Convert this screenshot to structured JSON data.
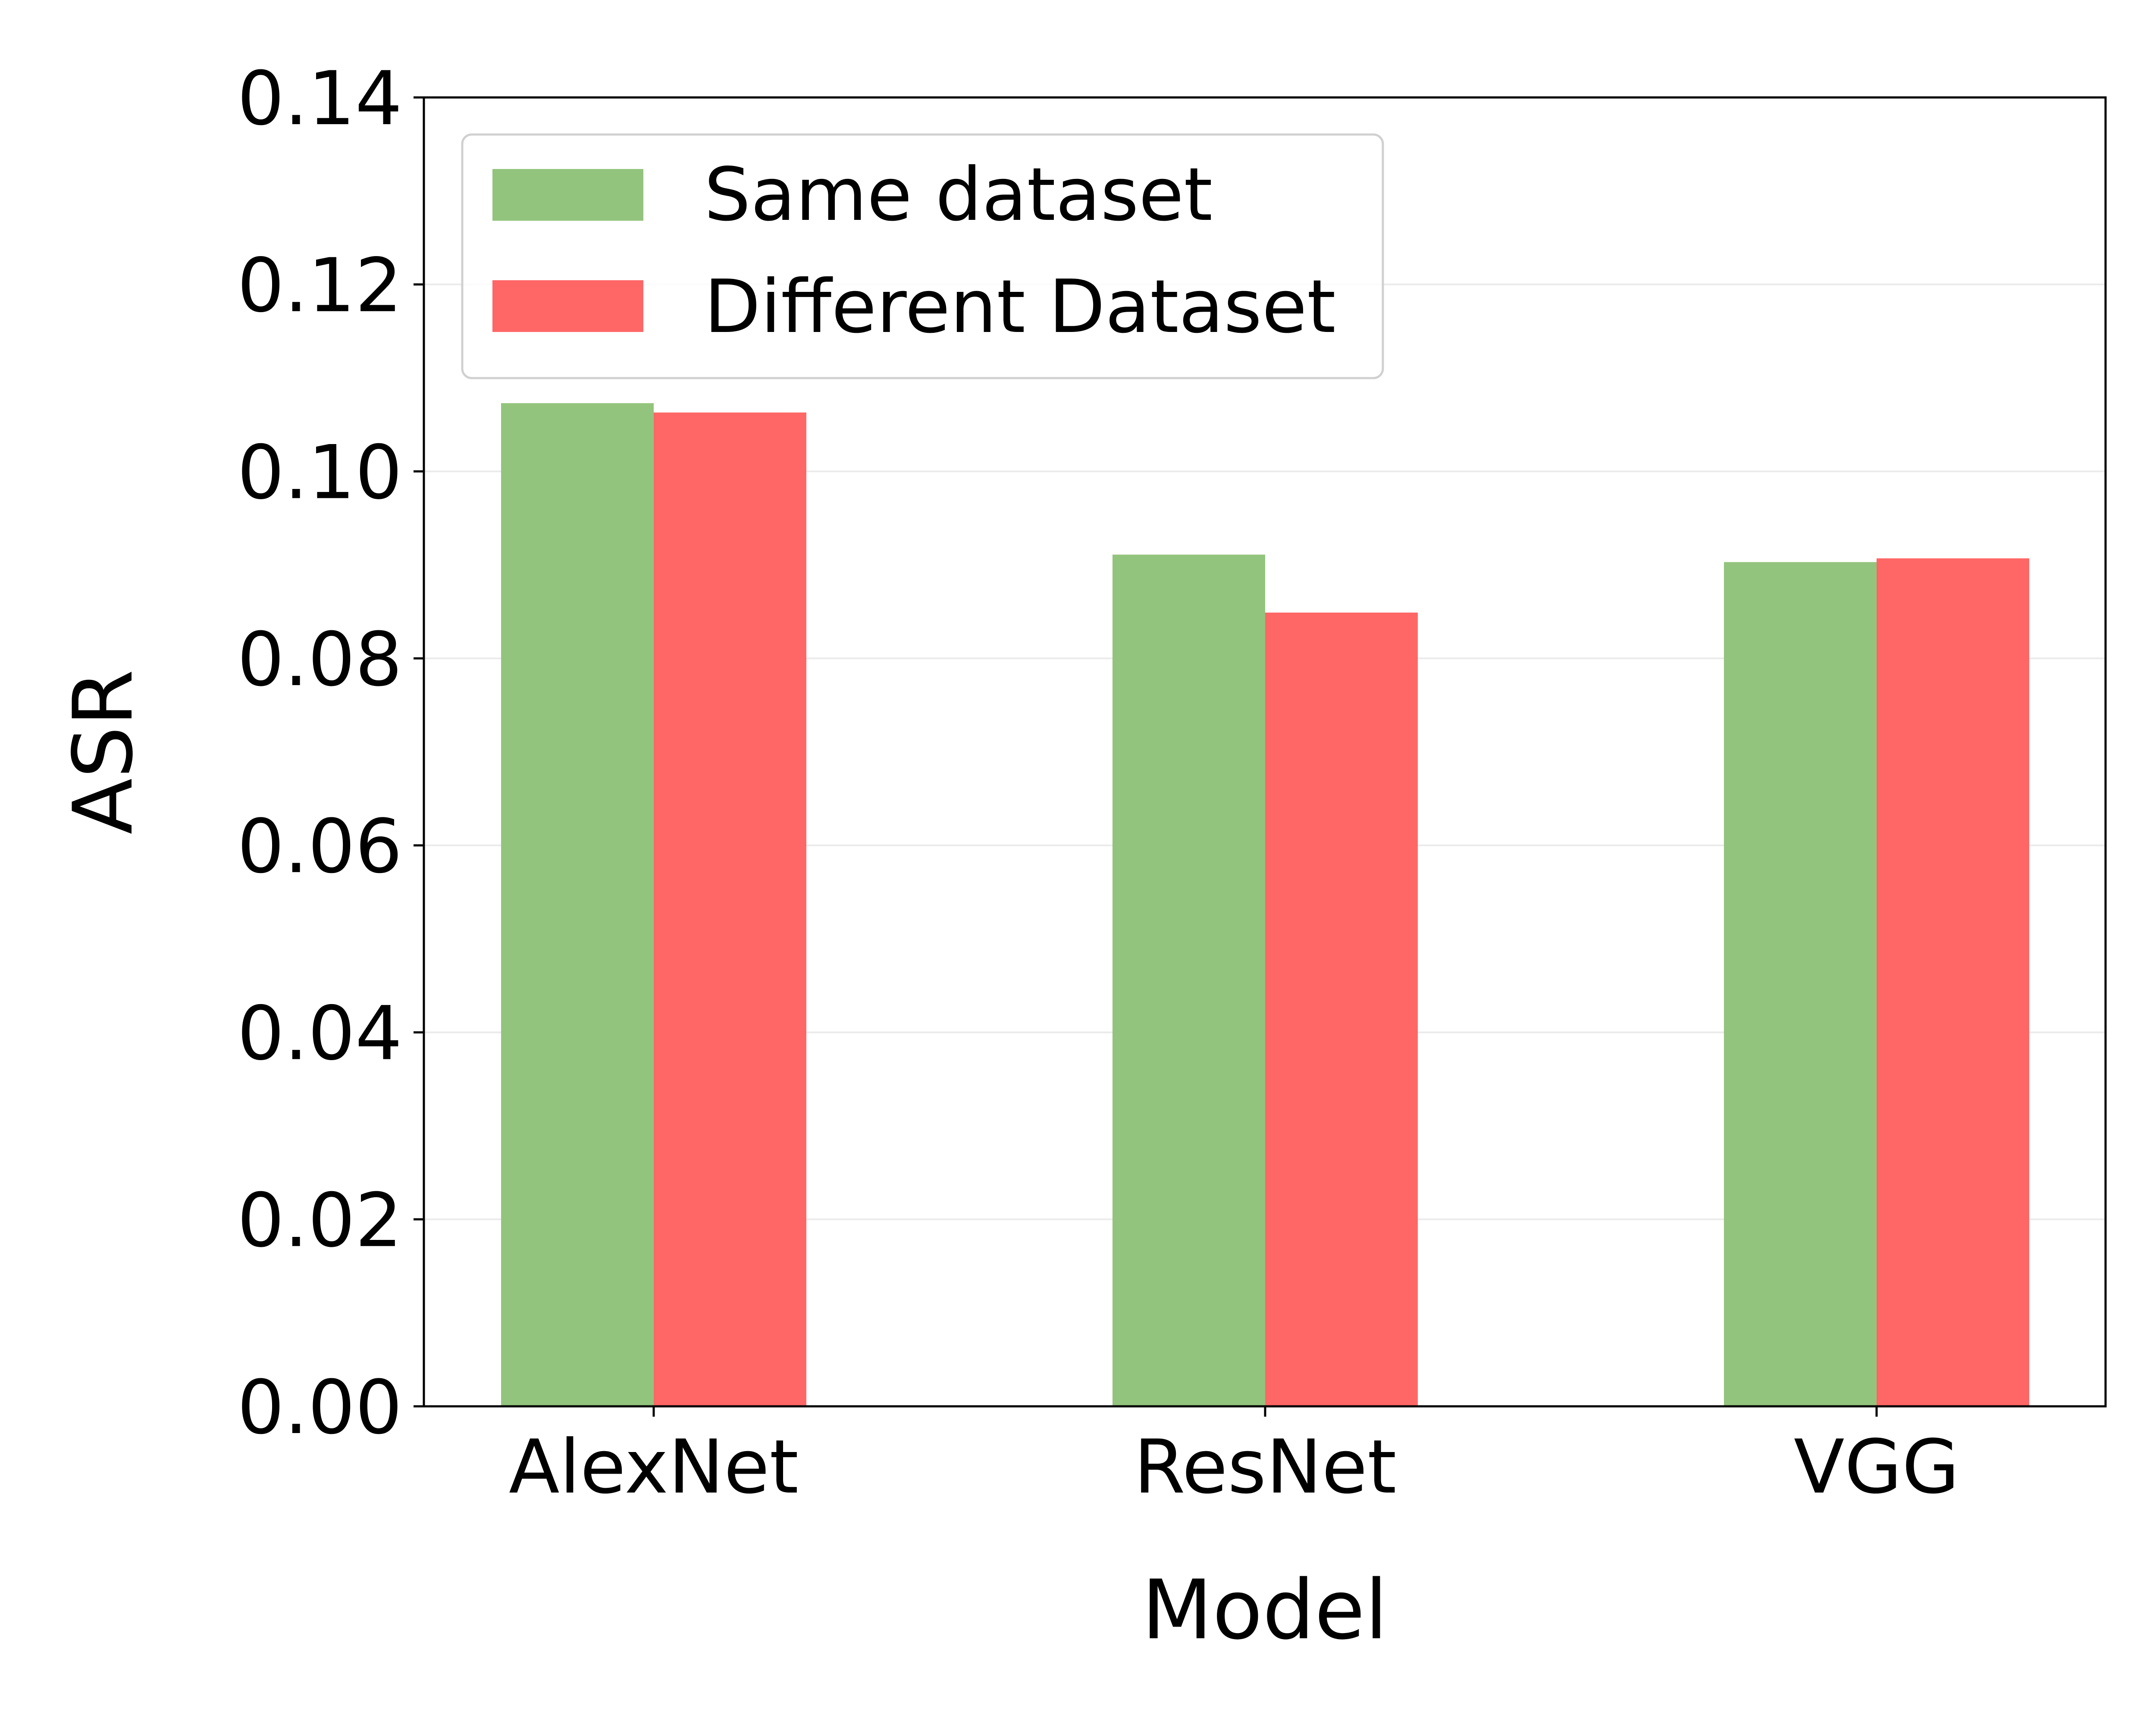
{
  "chart_data": {
    "type": "bar",
    "categories": [
      "AlexNet",
      "ResNet",
      "VGG"
    ],
    "series": [
      {
        "name": "Same dataset",
        "values": [
          0.1073,
          0.0911,
          0.0903
        ],
        "color": "#93c47d"
      },
      {
        "name": "Different Dataset",
        "values": [
          0.1063,
          0.0849,
          0.0907
        ],
        "color": "#ff6666"
      }
    ],
    "xlabel": "Model",
    "ylabel": "ASR",
    "ylim": [
      0,
      0.14
    ],
    "yticks": [
      "0.00",
      "0.02",
      "0.04",
      "0.06",
      "0.08",
      "0.10",
      "0.12",
      "0.14"
    ],
    "grid": "horizontal",
    "legend_position": "top-left"
  }
}
